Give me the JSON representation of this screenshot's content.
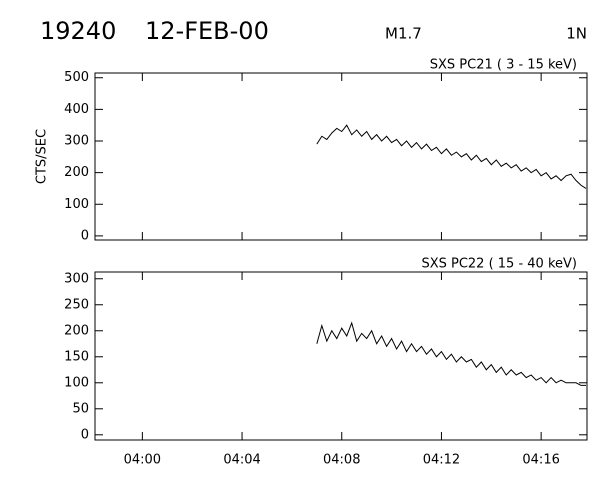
{
  "header": {
    "event": "19240",
    "date": "12-FEB-00",
    "class": "M1.7",
    "importance": "1N"
  },
  "chart_data": [
    {
      "type": "line",
      "title": "SXS PC21  (  3 - 15 keV)",
      "y_label": "CTS/SEC",
      "x": [
        247.0,
        247.2,
        247.4,
        247.6,
        247.8,
        248.0,
        248.2,
        248.4,
        248.6,
        248.8,
        249.0,
        249.2,
        249.4,
        249.6,
        249.8,
        250.0,
        250.2,
        250.4,
        250.6,
        250.8,
        251.0,
        251.2,
        251.4,
        251.6,
        251.8,
        252.0,
        252.2,
        252.4,
        252.6,
        252.8,
        253.0,
        253.2,
        253.4,
        253.6,
        253.8,
        254.0,
        254.2,
        254.4,
        254.6,
        254.8,
        255.0,
        255.2,
        255.4,
        255.6,
        255.8,
        256.0,
        256.2,
        256.4,
        256.6,
        256.8,
        257.0,
        257.2,
        257.4,
        257.6,
        257.8
      ],
      "series": [
        {
          "color": "#000000",
          "values": [
            290,
            315,
            305,
            325,
            340,
            330,
            350,
            320,
            335,
            315,
            330,
            305,
            320,
            300,
            315,
            295,
            305,
            285,
            300,
            280,
            295,
            275,
            290,
            270,
            280,
            260,
            275,
            255,
            265,
            250,
            260,
            240,
            255,
            235,
            245,
            225,
            240,
            220,
            230,
            215,
            225,
            205,
            215,
            200,
            210,
            190,
            200,
            180,
            190,
            175,
            190,
            195,
            175,
            160,
            150
          ]
        }
      ],
      "xlim": [
        238.1,
        257.84
      ],
      "xticks": [
        240,
        244,
        248,
        252,
        256
      ],
      "ylim": [
        -13,
        515
      ],
      "yticks": [
        0,
        100,
        200,
        300,
        400,
        500
      ]
    },
    {
      "type": "line",
      "title": "SXS PC22  ( 15 - 40 keV)",
      "x": [
        247.0,
        247.2,
        247.4,
        247.6,
        247.8,
        248.0,
        248.2,
        248.4,
        248.6,
        248.8,
        249.0,
        249.2,
        249.4,
        249.6,
        249.8,
        250.0,
        250.2,
        250.4,
        250.6,
        250.8,
        251.0,
        251.2,
        251.4,
        251.6,
        251.8,
        252.0,
        252.2,
        252.4,
        252.6,
        252.8,
        253.0,
        253.2,
        253.4,
        253.6,
        253.8,
        254.0,
        254.2,
        254.4,
        254.6,
        254.8,
        255.0,
        255.2,
        255.4,
        255.6,
        255.8,
        256.0,
        256.2,
        256.4,
        256.6,
        256.8,
        257.0,
        257.2,
        257.4,
        257.6,
        257.8
      ],
      "series": [
        {
          "color": "#000000",
          "values": [
            175,
            210,
            180,
            200,
            185,
            205,
            190,
            215,
            180,
            195,
            185,
            200,
            175,
            190,
            170,
            185,
            165,
            180,
            160,
            175,
            160,
            170,
            155,
            165,
            150,
            160,
            145,
            155,
            140,
            150,
            140,
            145,
            130,
            140,
            125,
            135,
            120,
            130,
            115,
            125,
            115,
            120,
            110,
            115,
            105,
            110,
            100,
            110,
            100,
            105,
            100,
            100,
            100,
            95,
            95
          ]
        }
      ],
      "xlim": [
        238.1,
        257.84
      ],
      "xticks": [
        {
          "value": 240,
          "label": "04:00"
        },
        {
          "value": 244,
          "label": "04:04"
        },
        {
          "value": 248,
          "label": "04:08"
        },
        {
          "value": 252,
          "label": "04:12"
        },
        {
          "value": 256,
          "label": "04:16"
        }
      ],
      "ylim": [
        -10,
        313
      ],
      "yticks": [
        0,
        50,
        100,
        150,
        200,
        250,
        300
      ]
    }
  ]
}
